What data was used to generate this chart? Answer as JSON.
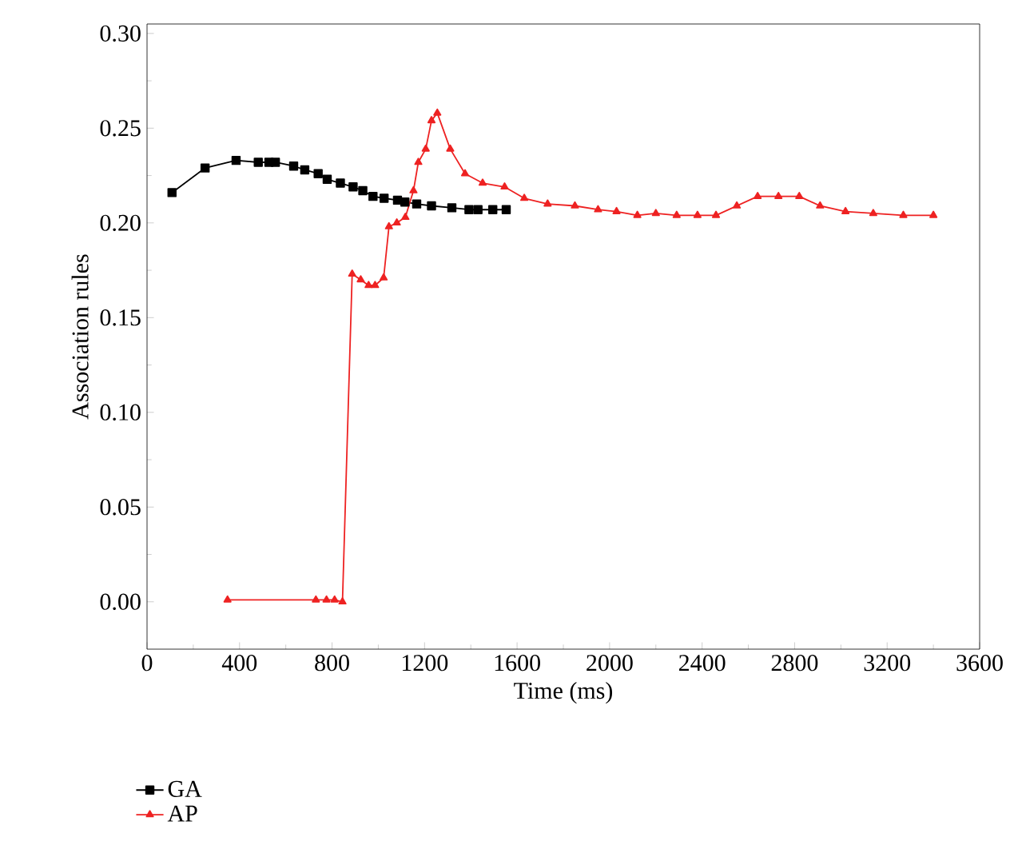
{
  "chart_data": {
    "type": "line",
    "xlabel": "Time (ms)",
    "ylabel": "Association rules",
    "xlim": [
      0,
      3600
    ],
    "xticks": [
      0,
      400,
      800,
      1200,
      1600,
      2000,
      2400,
      2800,
      3200,
      3600
    ],
    "ylim": [
      -0.025,
      0.305
    ],
    "yticks": [
      {
        "value": 0,
        "label": "0.00"
      },
      {
        "value": 0.05,
        "label": "0.05"
      },
      {
        "value": 0.1,
        "label": "0.10"
      },
      {
        "value": 0.15,
        "label": "0.15"
      },
      {
        "value": 0.2,
        "label": "0.20"
      },
      {
        "value": 0.25,
        "label": "0.25"
      },
      {
        "value": 0.3,
        "label": "0.30"
      }
    ],
    "legend": "bottom left",
    "grid": false,
    "series": [
      {
        "name": "GA",
        "color": "#000000",
        "marker": "square",
        "x": [
          108,
          251,
          385,
          481,
          527,
          555,
          634,
          682,
          740,
          779,
          836,
          891,
          933,
          977,
          1025,
          1083,
          1115,
          1166,
          1230,
          1318,
          1392,
          1431,
          1495,
          1553
        ],
        "values": [
          0.216,
          0.229,
          0.233,
          0.232,
          0.232,
          0.232,
          0.23,
          0.228,
          0.226,
          0.223,
          0.221,
          0.219,
          0.217,
          0.214,
          0.213,
          0.212,
          0.211,
          0.21,
          0.209,
          0.208,
          0.207,
          0.207,
          0.207,
          0.207
        ]
      },
      {
        "name": "AP",
        "color": "#ee2222",
        "marker": "triangle",
        "x": [
          348,
          730,
          776,
          811,
          845,
          887,
          924,
          958,
          986,
          1023,
          1046,
          1080,
          1117,
          1152,
          1173,
          1205,
          1230,
          1255,
          1311,
          1375,
          1451,
          1546,
          1631,
          1732,
          1850,
          1950,
          2030,
          2120,
          2200,
          2290,
          2380,
          2460,
          2550,
          2640,
          2730,
          2820,
          2910,
          3020,
          3140,
          3270,
          3400
        ],
        "values": [
          0.001,
          0.001,
          0.001,
          0.001,
          0.0,
          0.173,
          0.17,
          0.167,
          0.167,
          0.171,
          0.198,
          0.2,
          0.203,
          0.217,
          0.232,
          0.239,
          0.254,
          0.258,
          0.239,
          0.226,
          0.221,
          0.219,
          0.213,
          0.21,
          0.209,
          0.207,
          0.206,
          0.204,
          0.205,
          0.204,
          0.204,
          0.204,
          0.209,
          0.214,
          0.214,
          0.214,
          0.209,
          0.206,
          0.205,
          0.204,
          0.204
        ]
      }
    ]
  }
}
